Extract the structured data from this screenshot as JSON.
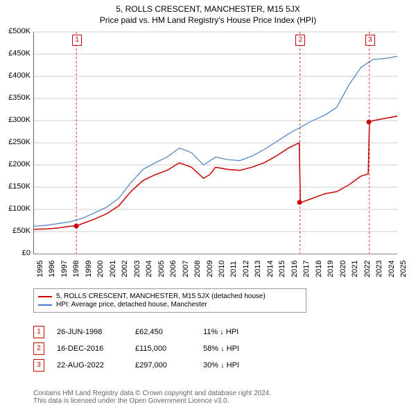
{
  "title": "5, ROLLS CRESCENT, MANCHESTER, M15 5JX",
  "subtitle": "Price paid vs. HM Land Registry's House Price Index (HPI)",
  "chart": {
    "type": "line",
    "background_color": "#ffffff",
    "grid_color": "#cccccc",
    "axis_color": "#666666",
    "title_fontsize": 12,
    "label_fontsize": 11,
    "xlim": [
      1995,
      2025
    ],
    "ylim": [
      0,
      500000
    ],
    "ytick_step": 50000,
    "y_ticks": [
      "£0",
      "£50K",
      "£100K",
      "£150K",
      "£200K",
      "£250K",
      "£300K",
      "£350K",
      "£400K",
      "£450K",
      "£500K"
    ],
    "x_ticks": [
      "1995",
      "1996",
      "1997",
      "1998",
      "1999",
      "2000",
      "2001",
      "2002",
      "2003",
      "2004",
      "2005",
      "2006",
      "2007",
      "2008",
      "2009",
      "2010",
      "2011",
      "2012",
      "2013",
      "2014",
      "2015",
      "2016",
      "2017",
      "2018",
      "2019",
      "2020",
      "2021",
      "2022",
      "2023",
      "2024",
      "2025"
    ],
    "series": [
      {
        "name": "5, ROLLS CRESCENT, MANCHESTER, M15 5JX (detached house)",
        "color": "#cc0000",
        "line_width": 1.5,
        "years": [
          1995,
          1996,
          1997,
          1998,
          1998.5,
          1999,
          2000,
          2001,
          2002,
          2003,
          2004,
          2005,
          2006,
          2007,
          2008,
          2009,
          2009.5,
          2010,
          2011,
          2012,
          2013,
          2014,
          2015,
          2016,
          2016.9,
          2017,
          2018,
          2019,
          2020,
          2021,
          2022,
          2022.6,
          2022.7,
          2023,
          2024,
          2025
        ],
        "values": [
          55000,
          56000,
          58000,
          62000,
          62450,
          68000,
          78000,
          90000,
          108000,
          140000,
          165000,
          178000,
          188000,
          205000,
          195000,
          170000,
          178000,
          195000,
          190000,
          188000,
          195000,
          205000,
          220000,
          238000,
          250000,
          115000,
          125000,
          135000,
          140000,
          155000,
          175000,
          180000,
          297000,
          300000,
          305000,
          310000
        ]
      },
      {
        "name": "HPI: Average price, detached house, Manchester",
        "color": "#4a7fc4",
        "line_width": 1.2,
        "years": [
          1995,
          1996,
          1997,
          1998,
          1999,
          2000,
          2001,
          2002,
          2003,
          2004,
          2005,
          2006,
          2007,
          2008,
          2009,
          2010,
          2011,
          2012,
          2013,
          2014,
          2015,
          2016,
          2017,
          2018,
          2019,
          2020,
          2021,
          2022,
          2023,
          2024,
          2025
        ],
        "values": [
          62000,
          64000,
          68000,
          72000,
          80000,
          92000,
          105000,
          125000,
          160000,
          190000,
          205000,
          218000,
          238000,
          228000,
          200000,
          218000,
          212000,
          210000,
          220000,
          235000,
          252000,
          270000,
          285000,
          300000,
          312000,
          330000,
          380000,
          420000,
          438000,
          440000,
          445000
        ]
      }
    ],
    "marker_points": [
      {
        "n": "1",
        "year": 1998.5,
        "value": 62450
      },
      {
        "n": "2",
        "year": 2016.95,
        "value": 115000
      },
      {
        "n": "3",
        "year": 2022.65,
        "value": 297000
      }
    ],
    "marker_boxes": [
      {
        "n": "1",
        "year": 1998.5
      },
      {
        "n": "2",
        "year": 2016.95
      },
      {
        "n": "3",
        "year": 2022.7
      }
    ]
  },
  "legend": {
    "s1": "5, ROLLS CRESCENT, MANCHESTER, M15 5JX (detached house)",
    "s2": "HPI: Average price, detached house, Manchester",
    "c1": "#cc0000",
    "c2": "#4a7fc4"
  },
  "events": [
    {
      "n": "1",
      "date": "26-JUN-1998",
      "price": "£62,450",
      "delta": "11% ↓ HPI"
    },
    {
      "n": "2",
      "date": "16-DEC-2016",
      "price": "£115,000",
      "delta": "58% ↓ HPI"
    },
    {
      "n": "3",
      "date": "22-AUG-2022",
      "price": "£297,000",
      "delta": "30% ↓ HPI"
    }
  ],
  "footer": {
    "l1": "Contains HM Land Registry data © Crown copyright and database right 2024.",
    "l2": "This data is licensed under the Open Government Licence v3.0."
  }
}
